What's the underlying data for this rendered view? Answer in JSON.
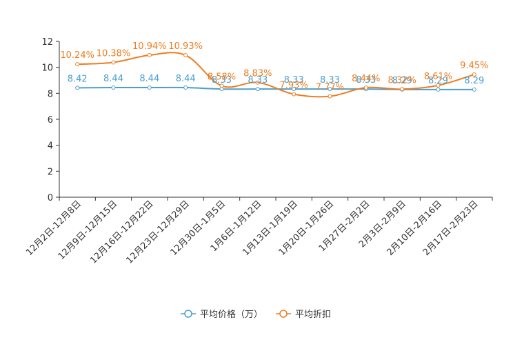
{
  "chart_data": {
    "type": "line",
    "title": "",
    "xlabel": "",
    "ylabel": "",
    "ylim": [
      0,
      12
    ],
    "yticks": [
      0,
      2,
      4,
      6,
      8,
      10,
      12
    ],
    "grid": false,
    "legend_position": "bottom-center",
    "categories": [
      "12月2日-12月8日",
      "12月9日-12月15日",
      "12月16日-12月22日",
      "12月23日-12月29日",
      "12月30日-1月5日",
      "1月6日-1月12日",
      "1月13日-1月19日",
      "1月20日-1月26日",
      "1月27日-2月2日",
      "2月3日-2月9日",
      "2月10日-2月16日",
      "2月17日-2月23日"
    ],
    "series": [
      {
        "name": "平均价格（万）",
        "color": "#4a9fcf",
        "values": [
          8.42,
          8.44,
          8.44,
          8.44,
          8.33,
          8.33,
          8.33,
          8.33,
          8.33,
          8.29,
          8.29,
          8.29
        ],
        "labels": [
          "8.42",
          "8.44",
          "8.44",
          "8.44",
          "8.33",
          "8.33",
          "8.33",
          "8.33",
          "8.33",
          "8.29",
          "8.29",
          "8.29"
        ]
      },
      {
        "name": "平均折扣",
        "color": "#f07c1e",
        "values": [
          10.24,
          10.38,
          10.94,
          10.93,
          8.58,
          8.83,
          7.93,
          7.77,
          8.44,
          8.32,
          8.61,
          9.45
        ],
        "labels": [
          "10.24%",
          "10.38%",
          "10.94%",
          "10.93%",
          "8.58%",
          "8.83%",
          "7.93%",
          "7.77%",
          "8.44%",
          "8.32%",
          "8.61%",
          "9.45%"
        ]
      }
    ]
  }
}
